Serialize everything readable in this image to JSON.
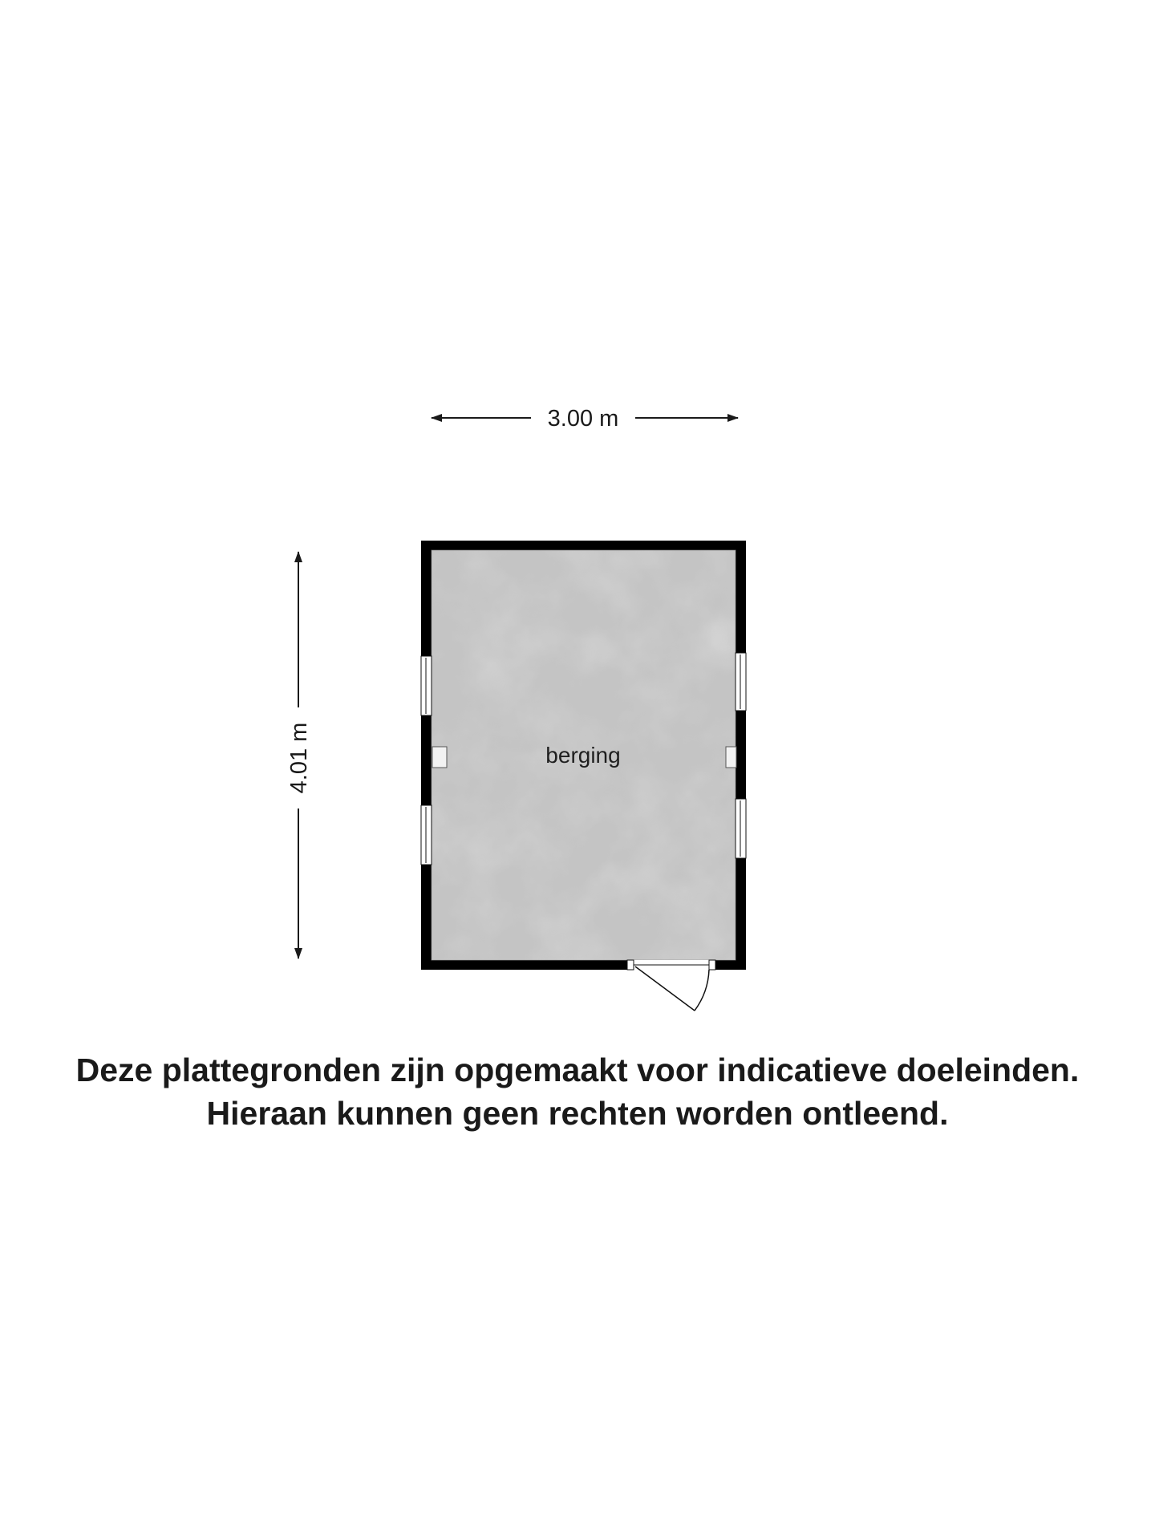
{
  "floorplan": {
    "width_label": "3.00 m",
    "depth_label": "4.01 m",
    "room_label": "berging"
  },
  "disclaimer": {
    "line1": "Deze plattegronden zijn opgemaakt voor indicatieve doeleinden.",
    "line2": "Hieraan kunnen geen rechten worden ontleend."
  },
  "colors": {
    "wall": "#000000",
    "floor": "#c4c4c4",
    "text": "#1a1a1a"
  }
}
